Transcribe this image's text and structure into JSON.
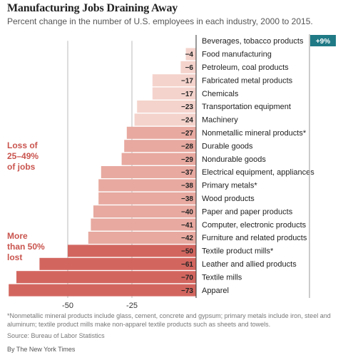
{
  "header": {
    "title": "Manufacturing Jobs Draining Away",
    "subtitle": "Percent change in the number of U.S. employees in each industry, 2000 to 2015."
  },
  "annotations": {
    "group2": [
      "Loss of",
      "25–49%",
      "of jobs"
    ],
    "group3": [
      "More",
      "than 50%",
      "lost"
    ]
  },
  "footer": {
    "note": "*Nonmetallic mineral products include glass, cement, concrete and gypsum; primary metals include iron, steel and aluminum; textile product mills make non-apparel textile products such as sheets and towels.",
    "source": "Source: Bureau of Labor Statistics",
    "credit": "By The New York Times"
  },
  "chart_data": {
    "type": "bar",
    "orientation": "horizontal",
    "categories": [
      "Beverages, tobacco products",
      "Food manufacturing",
      "Petroleum, coal products",
      "Fabricated metal products",
      "Chemicals",
      "Transportation equipment",
      "Machinery",
      "Nonmetallic mineral products*",
      "Durable goods",
      "Nondurable goods",
      "Electrical equipment, appliances",
      "Primary metals*",
      "Wood products",
      "Paper and paper products",
      "Computer, electronic products",
      "Furniture and related products",
      "Textile product mills*",
      "Leather and allied products",
      "Textile mills",
      "Apparel"
    ],
    "values": [
      9,
      -4,
      -6,
      -17,
      -17,
      -23,
      -24,
      -27,
      -28,
      -29,
      -37,
      -38,
      -38,
      -40,
      -41,
      -42,
      -50,
      -61,
      -70,
      -73
    ],
    "value_labels": [
      "+9%",
      "-4",
      "-6",
      "-17",
      "-17",
      "-23",
      "-24",
      "-27",
      "-28",
      "-29",
      "-37",
      "-38",
      "-38",
      "-40",
      "-41",
      "-42",
      "-50",
      "-61",
      "-70",
      "-73"
    ],
    "xticks": [
      -50,
      -25
    ],
    "xtick_labels": [
      "-50",
      "-25"
    ],
    "xlim": [
      -73,
      9
    ],
    "colors": {
      "positive": "#1f7a86",
      "light": "#f4d3cc",
      "mid": "#e7a9a0",
      "dark": "#d2665f"
    }
  }
}
